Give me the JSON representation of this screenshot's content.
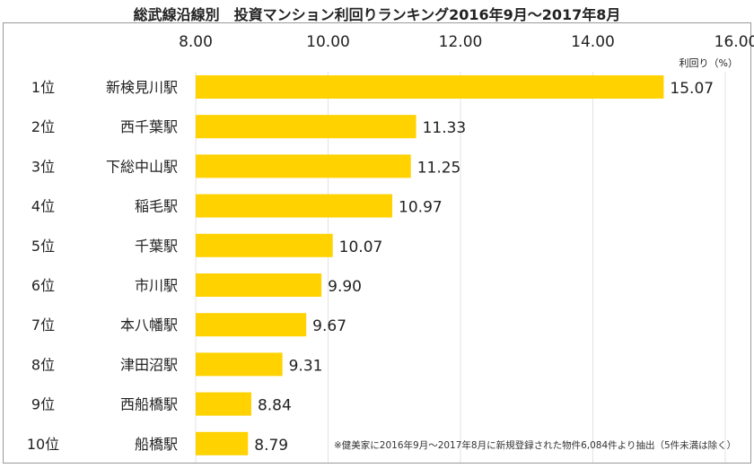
{
  "chart_data": {
    "type": "bar",
    "orientation": "horizontal",
    "title": "総武線沿線別　投資マンション利回りランキング2016年9月～2017年8月",
    "unit_label": "利回り（%）",
    "xlim": [
      8,
      16
    ],
    "ticks": [
      "8.00",
      "10.00",
      "12.00",
      "14.00",
      "16.00"
    ],
    "grid": true,
    "ranks": [
      "1位",
      "2位",
      "3位",
      "4位",
      "5位",
      "6位",
      "7位",
      "8位",
      "9位",
      "10位"
    ],
    "categories": [
      "新検見川駅",
      "西千葉駅",
      "下総中山駅",
      "稲毛駅",
      "千葉駅",
      "市川駅",
      "本八幡駅",
      "津田沼駅",
      "西船橋駅",
      "船橋駅"
    ],
    "values": [
      15.07,
      11.33,
      11.25,
      10.97,
      10.07,
      9.9,
      9.67,
      9.31,
      8.84,
      8.79
    ],
    "value_labels": [
      "15.07",
      "11.33",
      "11.25",
      "10.97",
      "10.07",
      "9.90",
      "9.67",
      "9.31",
      "8.84",
      "8.79"
    ],
    "bar_color": "#FFD200",
    "note": "※健美家に2016年9月～2017年8月に新規登録された物件6,084件より抽出（5件未満は除く）"
  }
}
